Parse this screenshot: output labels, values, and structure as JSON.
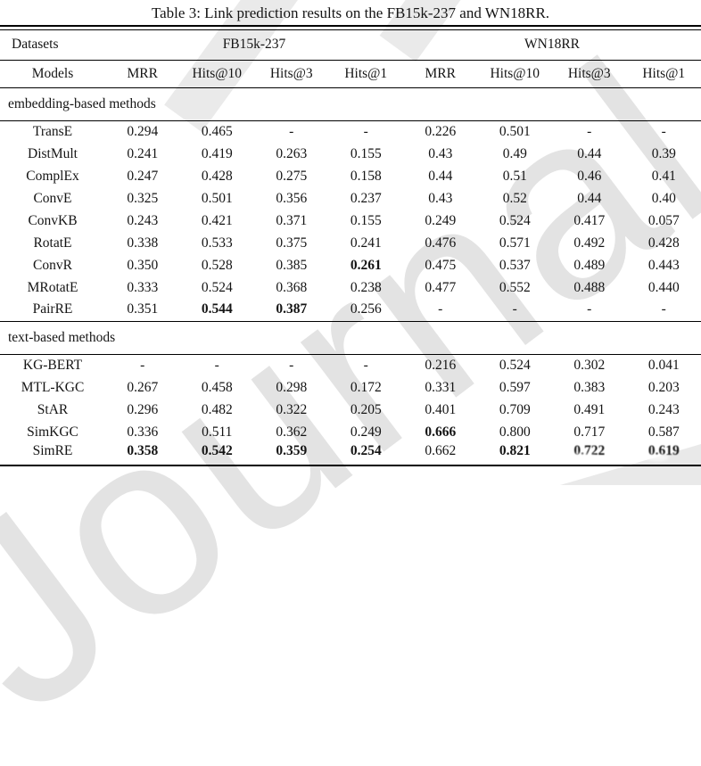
{
  "caption": "Table 3: Link prediction results on the FB15k-237 and WN18RR.",
  "watermark": {
    "text": "Journal Pre-proof",
    "color": "#e3e3e3"
  },
  "colors": {
    "text": "#141414",
    "background": "#ffffff",
    "rule": "#000000"
  },
  "table": {
    "datasets_label": "Datasets",
    "models_label": "Models",
    "groups": [
      {
        "label": "FB15k-237"
      },
      {
        "label": "WN18RR"
      }
    ],
    "metric_headers": [
      "MRR",
      "Hits@10",
      "Hits@3",
      "Hits@1",
      "MRR",
      "Hits@10",
      "Hits@3",
      "Hits@1"
    ],
    "sections": [
      {
        "label": "embedding-based methods",
        "rows": [
          {
            "model": "TransE",
            "values": [
              "0.294",
              "0.465",
              "-",
              "-",
              "0.226",
              "0.501",
              "-",
              "-"
            ],
            "bold": []
          },
          {
            "model": "DistMult",
            "values": [
              "0.241",
              "0.419",
              "0.263",
              "0.155",
              "0.43",
              "0.49",
              "0.44",
              "0.39"
            ],
            "bold": []
          },
          {
            "model": "ComplEx",
            "values": [
              "0.247",
              "0.428",
              "0.275",
              "0.158",
              "0.44",
              "0.51",
              "0.46",
              "0.41"
            ],
            "bold": []
          },
          {
            "model": "ConvE",
            "values": [
              "0.325",
              "0.501",
              "0.356",
              "0.237",
              "0.43",
              "0.52",
              "0.44",
              "0.40"
            ],
            "bold": []
          },
          {
            "model": "ConvKB",
            "values": [
              "0.243",
              "0.421",
              "0.371",
              "0.155",
              "0.249",
              "0.524",
              "0.417",
              "0.057"
            ],
            "bold": []
          },
          {
            "model": "RotatE",
            "values": [
              "0.338",
              "0.533",
              "0.375",
              "0.241",
              "0.476",
              "0.571",
              "0.492",
              "0.428"
            ],
            "bold": []
          },
          {
            "model": "ConvR",
            "values": [
              "0.350",
              "0.528",
              "0.385",
              "0.261",
              "0.475",
              "0.537",
              "0.489",
              "0.443"
            ],
            "bold": [
              3
            ]
          },
          {
            "model": "MRotatE",
            "values": [
              "0.333",
              "0.524",
              "0.368",
              "0.238",
              "0.477",
              "0.552",
              "0.488",
              "0.440"
            ],
            "bold": []
          },
          {
            "model": "PairRE",
            "values": [
              "0.351",
              "0.544",
              "0.387",
              "0.256",
              "-",
              "-",
              "-",
              "-"
            ],
            "bold": [
              1,
              2
            ]
          }
        ]
      },
      {
        "label": "text-based methods",
        "rows": [
          {
            "model": "KG-BERT",
            "values": [
              "-",
              "-",
              "-",
              "-",
              "0.216",
              "0.524",
              "0.302",
              "0.041"
            ],
            "bold": []
          },
          {
            "model": "MTL-KGC",
            "values": [
              "0.267",
              "0.458",
              "0.298",
              "0.172",
              "0.331",
              "0.597",
              "0.383",
              "0.203"
            ],
            "bold": []
          },
          {
            "model": "StAR",
            "values": [
              "0.296",
              "0.482",
              "0.322",
              "0.205",
              "0.401",
              "0.709",
              "0.491",
              "0.243"
            ],
            "bold": []
          },
          {
            "model": "SimKGC",
            "values": [
              "0.336",
              "0.511",
              "0.362",
              "0.249",
              "0.666",
              "0.800",
              "0.717",
              "0.587"
            ],
            "bold": [
              4
            ]
          },
          {
            "model": "SimRE",
            "values": [
              "0.358",
              "0.542",
              "0.359",
              "0.254",
              "0.662",
              "0.821",
              "0.722",
              "0.619"
            ],
            "bold": [
              0,
              1,
              2,
              3,
              5,
              6,
              7
            ],
            "garbled": [
              6,
              7
            ]
          }
        ]
      }
    ]
  }
}
